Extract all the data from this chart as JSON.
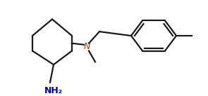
{
  "bg_color": "#ffffff",
  "line_color": "#1a1a1a",
  "n_color": "#8B4513",
  "nh2_color": "#00008B",
  "line_width": 1.6,
  "fig_w": 2.95,
  "fig_h": 1.37,
  "dpi": 100
}
